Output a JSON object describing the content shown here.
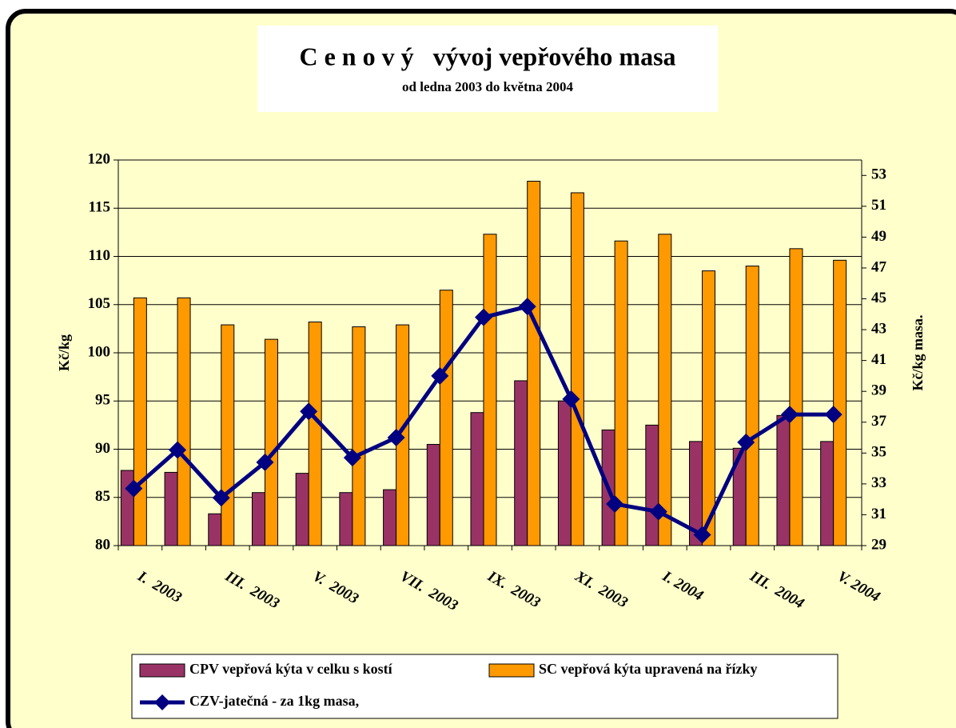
{
  "chart_data": {
    "type": "bar_line",
    "title": "C e n o v ý   vývoj vepřového masa",
    "subtitle": "od ledna 2003 do května 2004",
    "y_label": "Kč/kg",
    "y2_label": "Kč/kg masa.",
    "categories": [
      "I.  2003",
      null,
      "III.  2003",
      null,
      "V.  2003",
      null,
      "VII.  2003",
      null,
      "IX.  2003",
      null,
      "XI.  2003",
      null,
      "I. 2004",
      null,
      "III.  2004",
      null,
      "V. 2004"
    ],
    "ylim": [
      80,
      120
    ],
    "yticks": [
      80,
      85,
      90,
      95,
      100,
      105,
      110,
      115,
      120
    ],
    "y2lim": [
      29,
      54
    ],
    "y2ticks": [
      29,
      31,
      33,
      35,
      37,
      39,
      41,
      43,
      45,
      47,
      49,
      51,
      53
    ],
    "series": [
      {
        "name": "CPV vepřová kýta v celku s kostí",
        "kind": "bar",
        "color": "#993366",
        "values": [
          87.8,
          87.6,
          83.3,
          85.5,
          87.5,
          85.5,
          85.8,
          90.5,
          93.8,
          97.1,
          95,
          92,
          92.5,
          90.8,
          90.1,
          93.5,
          90.8
        ]
      },
      {
        "name": "SC vepřová kýta upravená na řízky",
        "kind": "bar",
        "color": "#FF9900",
        "values": [
          105.7,
          105.7,
          102.9,
          101.4,
          103.2,
          102.7,
          102.9,
          106.5,
          112.3,
          117.8,
          116.6,
          111.6,
          112.3,
          108.5,
          109,
          110.8,
          109.6
        ]
      },
      {
        "name": "CZV-jatečná - za 1kg masa,",
        "kind": "line",
        "axis": "y2",
        "color": "#000080",
        "values": [
          32.7,
          35.2,
          32.1,
          34.4,
          37.7,
          34.7,
          36.0,
          40.0,
          43.8,
          44.5,
          38.5,
          31.7,
          31.2,
          29.7,
          35.7,
          37.5,
          37.5
        ]
      }
    ]
  }
}
